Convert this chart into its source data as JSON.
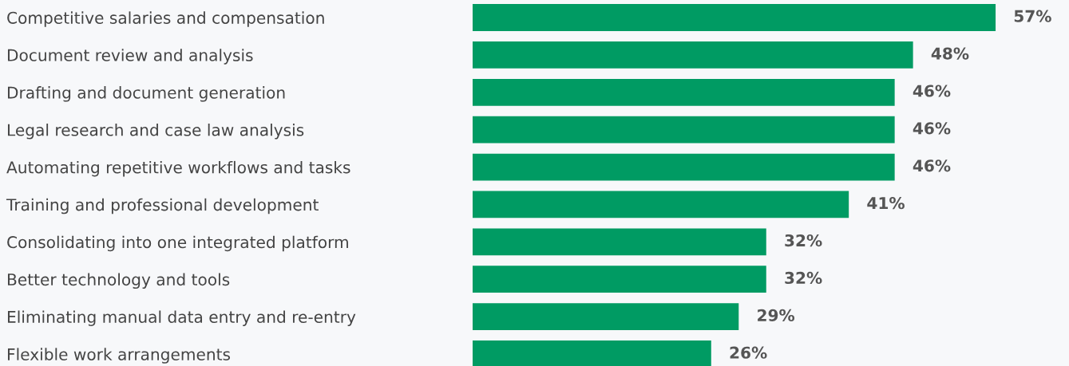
{
  "chart_data": {
    "type": "bar",
    "orientation": "horizontal",
    "categories": [
      "Competitive salaries and compensation",
      "Document review and analysis",
      "Drafting and document generation",
      "Legal research and case law analysis",
      "Automating repetitive workflows and tasks",
      "Training and professional development",
      "Consolidating into one integrated platform",
      "Better technology and tools",
      "Eliminating manual data entry and re-entry",
      "Flexible work arrangements"
    ],
    "values": [
      57,
      48,
      46,
      46,
      46,
      41,
      32,
      32,
      29,
      26
    ],
    "value_labels": [
      "57%",
      "48%",
      "46%",
      "46%",
      "46%",
      "41%",
      "32%",
      "32%",
      "29%",
      "26%"
    ],
    "color": "#009b63",
    "xlim": [
      0,
      65
    ],
    "tick_labels": "y",
    "grid": false,
    "legend": false
  }
}
